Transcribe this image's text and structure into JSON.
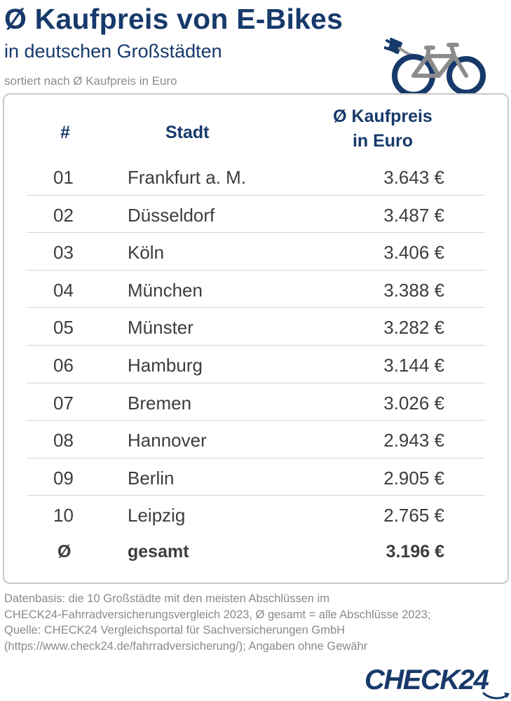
{
  "header": {
    "title": "Ø Kaufpreis von E-Bikes",
    "subtitle": "in deutschen Großstädten",
    "sort_note": "sortiert nach Ø Kaufpreis in Euro"
  },
  "table": {
    "columns": {
      "number": "#",
      "city": "Stadt",
      "price_line1": "Ø Kaufpreis",
      "price_line2": "in Euro"
    },
    "rows": [
      {
        "rank": "01",
        "city": "Frankfurt a. M.",
        "price": "3.643 €"
      },
      {
        "rank": "02",
        "city": "Düsseldorf",
        "price": "3.487 €"
      },
      {
        "rank": "03",
        "city": "Köln",
        "price": "3.406 €"
      },
      {
        "rank": "04",
        "city": "München",
        "price": "3.388 €"
      },
      {
        "rank": "05",
        "city": "Münster",
        "price": "3.282 €"
      },
      {
        "rank": "06",
        "city": "Hamburg",
        "price": "3.144 €"
      },
      {
        "rank": "07",
        "city": "Bremen",
        "price": "3.026 €"
      },
      {
        "rank": "08",
        "city": "Hannover",
        "price": "2.943 €"
      },
      {
        "rank": "09",
        "city": "Berlin",
        "price": "2.905 €"
      },
      {
        "rank": "10",
        "city": "Leipzig",
        "price": "2.765 €"
      }
    ],
    "total": {
      "rank": "Ø",
      "city": "gesamt",
      "price": "3.196 €"
    }
  },
  "footnote": {
    "line1": "Datenbasis: die 10 Großstädte mit den meisten Abschlüssen im",
    "line2": "CHECK24-Fahrradversicherungsvergleich 2023, Ø gesamt = alle Abschlüsse 2023;",
    "line3": "Quelle: CHECK24 Vergleichsportal für Sachversicherungen GmbH",
    "line4": "(https://www.check24.de/fahrradversicherung/); Angaben ohne Gewähr"
  },
  "brand": {
    "logo": "CHECK24",
    "color": "#173a6b",
    "text_color": "#3d3d3d"
  },
  "icons": {
    "illustration": "e-bike-icon",
    "logo_arrow": "swoosh-arrow-icon"
  }
}
